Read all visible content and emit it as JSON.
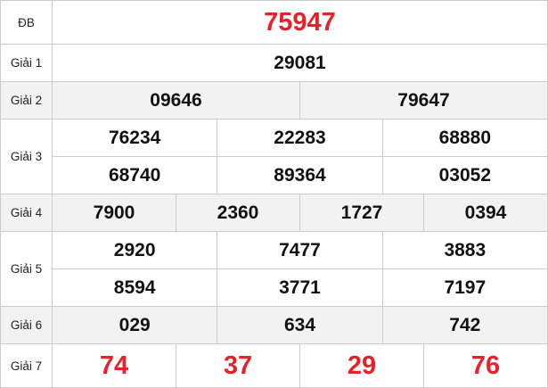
{
  "accent_color": "#e8202a",
  "rows": [
    {
      "label": "ĐB",
      "values": [
        "75947"
      ]
    },
    {
      "label": "Giải 1",
      "values": [
        "29081"
      ]
    },
    {
      "label": "Giải 2",
      "values": [
        "09646",
        "79647"
      ]
    },
    {
      "label": "Giải 3",
      "values": [
        "76234",
        "22283",
        "68880",
        "68740",
        "89364",
        "03052"
      ]
    },
    {
      "label": "Giải 4",
      "values": [
        "7900",
        "2360",
        "1727",
        "0394"
      ]
    },
    {
      "label": "Giải 5",
      "values": [
        "2920",
        "7477",
        "3883",
        "8594",
        "3771",
        "7197"
      ]
    },
    {
      "label": "Giải 6",
      "values": [
        "029",
        "634",
        "742"
      ]
    },
    {
      "label": "Giải 7",
      "values": [
        "74",
        "37",
        "29",
        "76"
      ]
    }
  ]
}
